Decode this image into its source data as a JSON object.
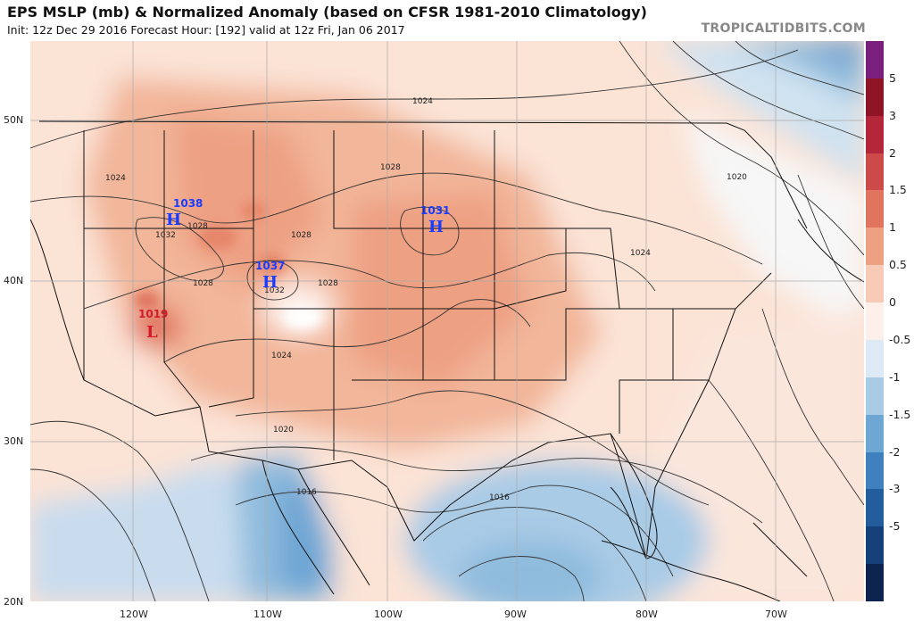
{
  "header": {
    "title": "EPS MSLP (mb) & Normalized Anomaly (based on CFSR 1981-2010 Climatology)",
    "subtitle": "Init: 12z Dec 29 2016   Forecast Hour: [192]   valid at 12z Fri, Jan 06 2017",
    "brand": "TROPICALTIDBITS.COM"
  },
  "axes": {
    "lat_labels": [
      "50N",
      "40N",
      "30N",
      "20N"
    ],
    "lon_labels": [
      "120W",
      "110W",
      "100W",
      "90W",
      "80W",
      "70W"
    ]
  },
  "pressure_centers": [
    {
      "type": "H",
      "value": "1038",
      "color": "#1a3cff"
    },
    {
      "type": "H",
      "value": "1037",
      "color": "#1a3cff"
    },
    {
      "type": "H",
      "value": "1031",
      "color": "#1a3cff"
    },
    {
      "type": "L",
      "value": "1019",
      "color": "#d11a2a"
    }
  ],
  "contour_labels": [
    "1024",
    "1024",
    "1028",
    "1028",
    "1032",
    "1028",
    "1032",
    "1028",
    "1028",
    "1024",
    "1020",
    "1020",
    "1016",
    "1016",
    "1024"
  ],
  "colorbar": {
    "ticks": [
      "5",
      "3",
      "2",
      "1.5",
      "1",
      "0.5",
      "0",
      "-0.5",
      "-1",
      "-1.5",
      "-2",
      "-3",
      "-5"
    ],
    "colors": [
      "#7a1f7e",
      "#8f1426",
      "#b4263a",
      "#cd4a4a",
      "#e0745f",
      "#eea083",
      "#f7cab5",
      "#fdf0ea",
      "#dde9f4",
      "#a9cbe6",
      "#6ea6d4",
      "#3f80bf",
      "#235d9e",
      "#15407a",
      "#0c2350"
    ]
  }
}
